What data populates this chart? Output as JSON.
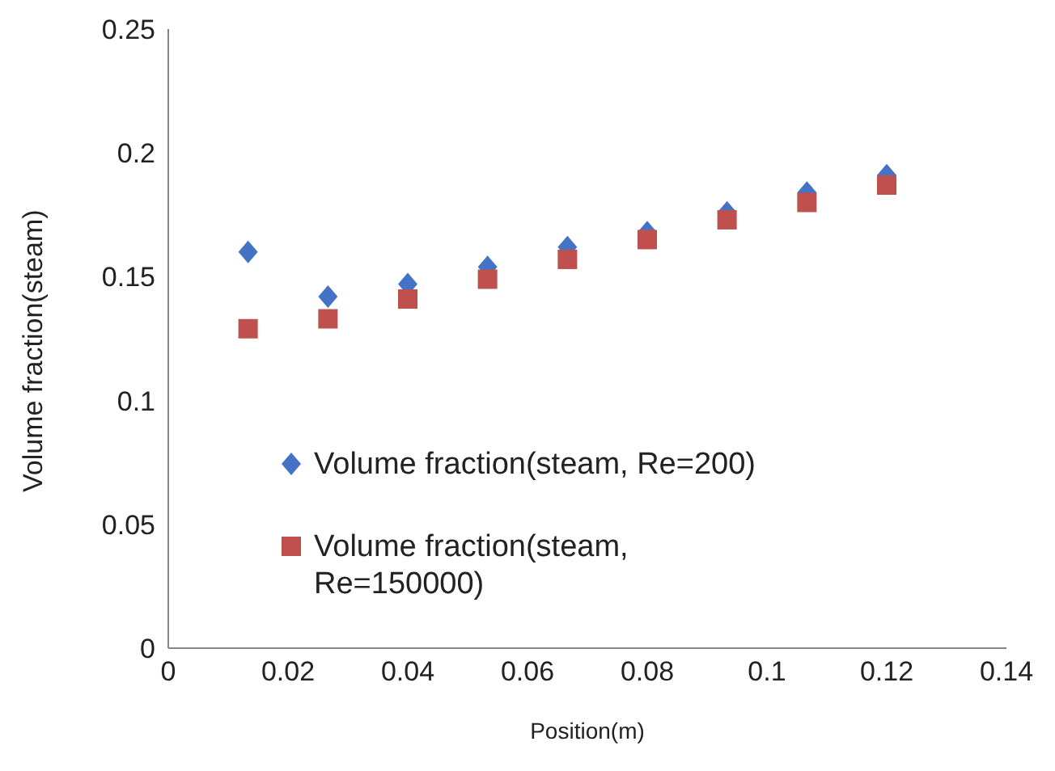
{
  "chart_data": {
    "type": "scatter",
    "xlabel": "Position(m)",
    "ylabel": "Volume fraction(steam)",
    "x": [
      0.01333,
      0.02667,
      0.04,
      0.05333,
      0.06667,
      0.08,
      0.09333,
      0.10667,
      0.12
    ],
    "series": [
      {
        "name": "Volume fraction(steam, Re=200)",
        "color": "#4472c4",
        "marker": "diamond",
        "values": [
          0.16,
          0.142,
          0.147,
          0.154,
          0.162,
          0.168,
          0.176,
          0.184,
          0.191
        ]
      },
      {
        "name": "Volume fraction(steam, Re=150000)",
        "color": "#c0504d",
        "marker": "square",
        "values": [
          0.129,
          0.133,
          0.141,
          0.149,
          0.157,
          0.165,
          0.173,
          0.18,
          0.187
        ]
      }
    ],
    "xlim": [
      0,
      0.14
    ],
    "xticks": [
      0,
      0.02,
      0.04,
      0.06,
      0.08,
      0.1,
      0.12,
      0.14
    ],
    "ylim": [
      0,
      0.25
    ],
    "yticks": [
      0,
      0.05,
      0.1,
      0.15,
      0.2,
      0.25
    ],
    "grid": false,
    "legend": "bottom left"
  }
}
